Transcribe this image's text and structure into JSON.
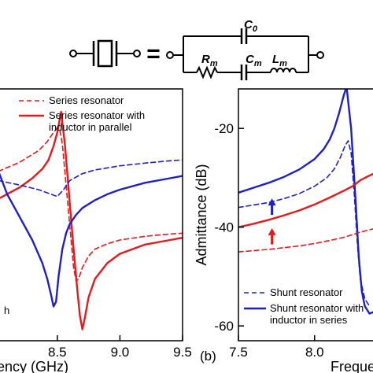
{
  "circuit": {
    "symbol": "crystal-resonator-symbol",
    "equals": "=",
    "c0_main": "C",
    "c0_sub": "0",
    "rm_main": "R",
    "rm_sub": "m",
    "cm_main": "C",
    "cm_sub": "m",
    "lm_main": "L",
    "lm_sub": "m"
  },
  "chart_data": [
    {
      "type": "line",
      "panel_label": "",
      "title": "",
      "xlabel": "ency (GHz)",
      "ylabel": "",
      "xlim": [
        8.03,
        9.5
      ],
      "ylim": [
        -65,
        -10
      ],
      "xticks": [
        8.5,
        9.0,
        9.5
      ],
      "xtick_labels": [
        "8.5",
        "9.0",
        "9.5"
      ],
      "legend": {
        "placement": "top",
        "entries": [
          "Series resonator",
          "Series resonator with inductor in parallel"
        ]
      },
      "legend_lines": [
        "Series resonator",
        "Series resonator with",
        "inductor in parallel"
      ],
      "stray_label": "h",
      "series": [
        {
          "name": "Series resonator",
          "color": "#e41a1c",
          "dash": true,
          "x": [
            8.03,
            8.2,
            8.35,
            8.42,
            8.47,
            8.5,
            8.52,
            8.54,
            8.56,
            8.6,
            8.63,
            8.65,
            8.67,
            8.7,
            8.75,
            8.8,
            8.9,
            9.0,
            9.2,
            9.4,
            9.5
          ],
          "y": [
            -28,
            -26,
            -23.5,
            -21.5,
            -19.5,
            -18.5,
            -19,
            -22,
            -28,
            -40,
            -49,
            -52,
            -51.5,
            -49,
            -46.5,
            -45,
            -43.8,
            -43,
            -42.2,
            -41.7,
            -41.5
          ]
        },
        {
          "name": "Series resonator with inductor in parallel",
          "color": "#e41a1c",
          "dash": false,
          "x": [
            8.03,
            8.2,
            8.3,
            8.38,
            8.43,
            8.47,
            8.5,
            8.52,
            8.53,
            8.56,
            8.6,
            8.63,
            8.66,
            8.68,
            8.7,
            8.72,
            8.75,
            8.8,
            8.9,
            9.0,
            9.2,
            9.4,
            9.5
          ],
          "y": [
            -34,
            -31.5,
            -29.5,
            -27.5,
            -25.5,
            -22.5,
            -19.5,
            -16.5,
            -15,
            -22,
            -35,
            -45,
            -54,
            -59.5,
            -62.5,
            -60,
            -55.5,
            -51.5,
            -48,
            -46,
            -44,
            -43,
            -42.5
          ]
        },
        {
          "name": "",
          "color": "#1f1fc8",
          "dash": true,
          "x": [
            8.03,
            8.2,
            8.35,
            8.45,
            8.5,
            8.55,
            8.6,
            8.7,
            8.8,
            9.0,
            9.2,
            9.4,
            9.5
          ],
          "y": [
            -30,
            -31,
            -32,
            -33,
            -33.5,
            -32,
            -30,
            -28.5,
            -27.7,
            -26.8,
            -26.2,
            -25.7,
            -25.5
          ]
        },
        {
          "name": "",
          "color": "#1f1fc8",
          "dash": false,
          "x": [
            8.03,
            8.1,
            8.2,
            8.3,
            8.38,
            8.42,
            8.45,
            8.47,
            8.49,
            8.51,
            8.54,
            8.57,
            8.6,
            8.65,
            8.7,
            8.8,
            8.9,
            9.0,
            9.2,
            9.4,
            9.5
          ],
          "y": [
            -28,
            -33,
            -38,
            -43,
            -48,
            -51.5,
            -55,
            -57.5,
            -56.5,
            -51,
            -45,
            -41.5,
            -39.5,
            -37.5,
            -36,
            -34.3,
            -33,
            -32,
            -30.5,
            -29.5,
            -29
          ]
        }
      ]
    },
    {
      "type": "line",
      "panel_label": "(b)",
      "title": "",
      "xlabel": "Freque",
      "ylabel": "Admittance (dB)",
      "xlim": [
        7.5,
        8.43
      ],
      "ylim": [
        -63,
        -12
      ],
      "xticks": [
        7.5,
        8.0
      ],
      "xtick_labels": [
        "7.5",
        "8.0"
      ],
      "yticks": [
        -20,
        -40,
        -60
      ],
      "ytick_labels": [
        "-20",
        "-40",
        "-60"
      ],
      "legend": {
        "placement": "bottom",
        "entries": [
          "Shunt resonator",
          "Shunt resonator with inductor in series"
        ]
      },
      "legend_lines": [
        "Shunt resonator",
        "Shunt resonator with",
        "inductor in series"
      ],
      "arrows": [
        {
          "color": "#1f1fc8",
          "x": 7.72,
          "y_from": -37.5,
          "y_to": -34.5
        },
        {
          "color": "#e41a1c",
          "x": 7.72,
          "y_from": -43.5,
          "y_to": -40.5
        }
      ],
      "series": [
        {
          "name": "Shunt resonator",
          "color": "#1f1fc8",
          "dash": true,
          "x": [
            7.5,
            7.6,
            7.7,
            7.8,
            7.9,
            8.0,
            8.08,
            8.13,
            8.17,
            8.2,
            8.22,
            8.24,
            8.26,
            8.28,
            8.3,
            8.33,
            8.36
          ],
          "y": [
            -36,
            -35.5,
            -35,
            -34.2,
            -33.2,
            -31.7,
            -30,
            -28.2,
            -25.8,
            -23.5,
            -22.5,
            -25,
            -33,
            -43,
            -50.5,
            -54.5,
            -56
          ]
        },
        {
          "name": "Shunt resonator with inductor in series",
          "color": "#1f1fc8",
          "dash": false,
          "x": [
            7.5,
            7.6,
            7.7,
            7.8,
            7.9,
            8.0,
            8.06,
            8.1,
            8.13,
            8.16,
            8.19,
            8.21,
            8.24,
            8.27,
            8.29,
            8.31,
            8.33,
            8.36,
            8.4,
            8.43
          ],
          "y": [
            -33,
            -32,
            -31,
            -29.8,
            -28.3,
            -26.2,
            -24.2,
            -22.2,
            -20,
            -17,
            -13.5,
            -11.5,
            -20,
            -35,
            -46,
            -53,
            -56,
            -57.5,
            -57,
            -56
          ]
        },
        {
          "name": "",
          "color": "#e41a1c",
          "dash": true,
          "x": [
            7.5,
            7.7,
            7.9,
            8.0,
            8.1,
            8.2,
            8.3,
            8.43
          ],
          "y": [
            -45,
            -44.5,
            -43.8,
            -43.3,
            -42.7,
            -42,
            -41,
            -40
          ]
        },
        {
          "name": "",
          "color": "#e41a1c",
          "dash": false,
          "x": [
            7.5,
            7.6,
            7.7,
            7.8,
            7.9,
            8.0,
            8.1,
            8.2,
            8.25,
            8.3,
            8.35,
            8.43
          ],
          "y": [
            -40,
            -39.3,
            -38.5,
            -37.6,
            -36.6,
            -35.4,
            -34,
            -32.5,
            -31.7,
            -30.5,
            -29.7,
            -28.5
          ]
        }
      ]
    }
  ]
}
